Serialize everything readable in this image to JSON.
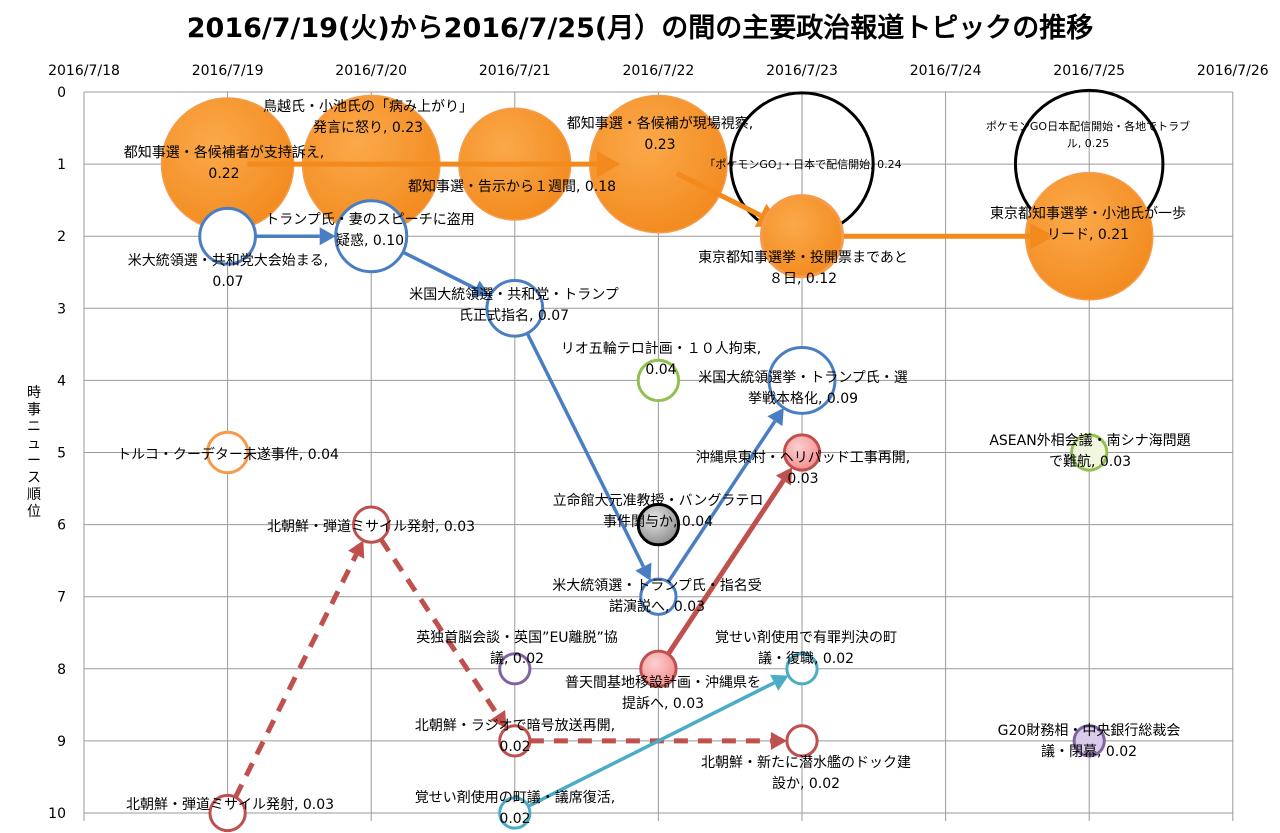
{
  "chart_data": {
    "type": "bubble",
    "title": "2016/7/19(火)から2016/7/25(月）の間の主要政治報道トピックの推移",
    "ylabel": "時事ニュース順位",
    "x_ticks": [
      "2016/7/18",
      "2016/7/19",
      "2016/7/20",
      "2016/7/21",
      "2016/7/22",
      "2016/7/23",
      "2016/7/24",
      "2016/7/25",
      "2016/7/26"
    ],
    "xlim": [
      "2016/7/18",
      "2016/7/26"
    ],
    "ylim": [
      0,
      10
    ],
    "y_ticks": [
      0,
      1,
      2,
      3,
      4,
      5,
      6,
      7,
      8,
      9,
      10
    ],
    "y_reversed": true,
    "grid": true,
    "colors": {
      "orange": "#F28A1E",
      "blue": "#4A7EC2",
      "red": "#C0504D",
      "pink": "#F5A0A0",
      "green": "#92C050",
      "lightorange": "#F59B4B",
      "purple": "#8064A2",
      "teal": "#4BACC6",
      "gray": "#BBBBBB",
      "black": "#000000",
      "lightyellow": "#F1F7DE",
      "lavender": "#D9CCEB"
    },
    "bubbles": [
      {
        "id": "b1",
        "date": "2016/7/19",
        "rank": 1,
        "size": 0.22,
        "fill": "orange",
        "stroke": "lightorange",
        "label": [
          "都知事選・各候補者が支持訴え,",
          "0.22"
        ]
      },
      {
        "id": "b2",
        "date": "2016/7/20",
        "rank": 1,
        "size": 0.23,
        "fill": "orange",
        "stroke": "lightorange",
        "label": [
          "鳥越氏・小池氏の「病み上がり」",
          "発言に怒り, 0.23"
        ]
      },
      {
        "id": "b3",
        "date": "2016/7/21",
        "rank": 1,
        "size": 0.18,
        "fill": "orange",
        "stroke": "lightorange",
        "label": [
          "都知事選・告示から１週間, 0.18"
        ]
      },
      {
        "id": "b4",
        "date": "2016/7/22",
        "rank": 1,
        "size": 0.23,
        "fill": "orange",
        "stroke": "lightorange",
        "label": [
          "都知事選・各候補が現場視察,",
          "0.23"
        ]
      },
      {
        "id": "b5",
        "date": "2016/7/23",
        "rank": 1,
        "size": 0.24,
        "fill": "none",
        "stroke": "black",
        "label": [
          "「ポケモンGO」・日本で配信開始, 0.24"
        ]
      },
      {
        "id": "b6",
        "date": "2016/7/23",
        "rank": 2,
        "size": 0.12,
        "fill": "orange",
        "stroke": "lightorange",
        "label": [
          "東京都知事選挙・投開票まであと",
          "８日, 0.12"
        ]
      },
      {
        "id": "b7",
        "date": "2016/7/25",
        "rank": 1,
        "size": 0.25,
        "fill": "none",
        "stroke": "black",
        "label": [
          "ポケモンGO日本配信開始・各地でトラブ",
          "ル, 0.25"
        ]
      },
      {
        "id": "b8",
        "date": "2016/7/25",
        "rank": 2,
        "size": 0.21,
        "fill": "orange",
        "stroke": "lightorange",
        "label": [
          "東京都知事選挙・小池氏が一歩",
          "リード, 0.21"
        ]
      },
      {
        "id": "b9",
        "date": "2016/7/19",
        "rank": 2,
        "size": 0.07,
        "fill": "white",
        "stroke": "blue",
        "label": [
          "米大統領選・共和党大会始まる,",
          "0.07"
        ]
      },
      {
        "id": "b10",
        "date": "2016/7/20",
        "rank": 2,
        "size": 0.1,
        "fill": "white",
        "stroke": "blue",
        "label": [
          "トランプ氏・妻のスピーチに盗用",
          "疑惑, 0.10"
        ]
      },
      {
        "id": "b11",
        "date": "2016/7/21",
        "rank": 3,
        "size": 0.07,
        "fill": "white",
        "stroke": "blue",
        "label": [
          "米国大統領選・共和党・トランプ",
          "氏正式指名, 0.07"
        ]
      },
      {
        "id": "b12",
        "date": "2016/7/22",
        "rank": 4,
        "size": 0.04,
        "fill": "white",
        "stroke": "green",
        "label": [
          "リオ五輪テロ計画・１０人拘束,",
          "0.04"
        ]
      },
      {
        "id": "b13",
        "date": "2016/7/23",
        "rank": 4,
        "size": 0.09,
        "fill": "white",
        "stroke": "blue",
        "label": [
          "米国大統領選挙・トランプ氏・選",
          "挙戦本格化, 0.09"
        ]
      },
      {
        "id": "b14",
        "date": "2016/7/19",
        "rank": 5,
        "size": 0.04,
        "fill": "white",
        "stroke": "lightorange",
        "label": [
          "トルコ・クーデター未遂事件, 0.04"
        ]
      },
      {
        "id": "b15",
        "date": "2016/7/23",
        "rank": 5,
        "size": 0.03,
        "fill": "pink",
        "stroke": "red",
        "label": [
          "沖縄県東村・ヘリパッド工事再開,",
          "0.03"
        ]
      },
      {
        "id": "b16",
        "date": "2016/7/25",
        "rank": 5,
        "size": 0.03,
        "fill": "lightyellow",
        "stroke": "green",
        "label": [
          "ASEAN外相会議・南シナ海問題",
          "で難航, 0.03"
        ]
      },
      {
        "id": "b17",
        "date": "2016/7/20",
        "rank": 6,
        "size": 0.03,
        "fill": "white",
        "stroke": "red",
        "label": [
          "北朝鮮・弾道ミサイル発射, 0.03"
        ]
      },
      {
        "id": "b18",
        "date": "2016/7/22",
        "rank": 6,
        "size": 0.04,
        "fill": "gray",
        "stroke": "black",
        "label": [
          "立命館大元准教授・バングラテロ",
          "事件関与か, 0.04"
        ]
      },
      {
        "id": "b19",
        "date": "2016/7/22",
        "rank": 7,
        "size": 0.03,
        "fill": "white",
        "stroke": "blue",
        "label": [
          "米大統領選・トランプ氏・指名受",
          "諾演説へ, 0.03"
        ]
      },
      {
        "id": "b20",
        "date": "2016/7/21",
        "rank": 8,
        "size": 0.02,
        "fill": "white",
        "stroke": "purple",
        "label": [
          "英独首脳会談・英国”EU離脱”協",
          "議, 0.02"
        ]
      },
      {
        "id": "b21",
        "date": "2016/7/22",
        "rank": 8,
        "size": 0.03,
        "fill": "pink",
        "stroke": "red",
        "label": [
          "普天間基地移設計画・沖縄県を",
          "提訴へ, 0.03"
        ]
      },
      {
        "id": "b22",
        "date": "2016/7/23",
        "rank": 8,
        "size": 0.02,
        "fill": "white",
        "stroke": "teal",
        "label": [
          "覚せい剤使用で有罪判決の町",
          "議・復職, 0.02"
        ]
      },
      {
        "id": "b23",
        "date": "2016/7/21",
        "rank": 9,
        "size": 0.02,
        "fill": "white",
        "stroke": "red",
        "label": [
          "北朝鮮・ラジオで暗号放送再開,",
          "0.02"
        ]
      },
      {
        "id": "b24",
        "date": "2016/7/23",
        "rank": 9,
        "size": 0.02,
        "fill": "white",
        "stroke": "red",
        "label": [
          "北朝鮮・新たに潜水艦のドック建",
          "設か, 0.02"
        ]
      },
      {
        "id": "b25",
        "date": "2016/7/25",
        "rank": 9,
        "size": 0.02,
        "fill": "lavender",
        "stroke": "purple",
        "label": [
          "G20財務相・中央銀行総裁会",
          "議・閉幕, 0.02"
        ]
      },
      {
        "id": "b26",
        "date": "2016/7/19",
        "rank": 10,
        "size": 0.03,
        "fill": "white",
        "stroke": "red",
        "label": [
          "北朝鮮・弾道ミサイル発射, 0.03"
        ]
      },
      {
        "id": "b27",
        "date": "2016/7/21",
        "rank": 10,
        "size": 0.02,
        "fill": "white",
        "stroke": "teal",
        "label": [
          "覚せい剤使用の町議・議席復活,",
          "0.02"
        ]
      }
    ],
    "arrows": [
      {
        "from": "b1",
        "to": "b4",
        "color": "orange",
        "dash": false
      },
      {
        "from": "b4",
        "to": "b6",
        "color": "orange",
        "dash": false
      },
      {
        "from": "b6",
        "to": "b8",
        "color": "orange",
        "dash": false
      },
      {
        "from": "b9",
        "to": "b10",
        "color": "blue",
        "dash": false
      },
      {
        "from": "b10",
        "to": "b11",
        "color": "blue",
        "dash": false
      },
      {
        "from": "b11",
        "to": "b19",
        "color": "blue",
        "dash": false
      },
      {
        "from": "b19",
        "to": "b13",
        "color": "blue",
        "dash": false
      },
      {
        "from": "b21",
        "to": "b15",
        "color": "red",
        "dash": false
      },
      {
        "from": "b26",
        "to": "b17",
        "color": "red",
        "dash": true
      },
      {
        "from": "b17",
        "to": "b23",
        "color": "red",
        "dash": true
      },
      {
        "from": "b23",
        "to": "b24",
        "color": "red",
        "dash": true
      },
      {
        "from": "b27",
        "to": "b22",
        "color": "teal",
        "dash": false
      }
    ]
  }
}
